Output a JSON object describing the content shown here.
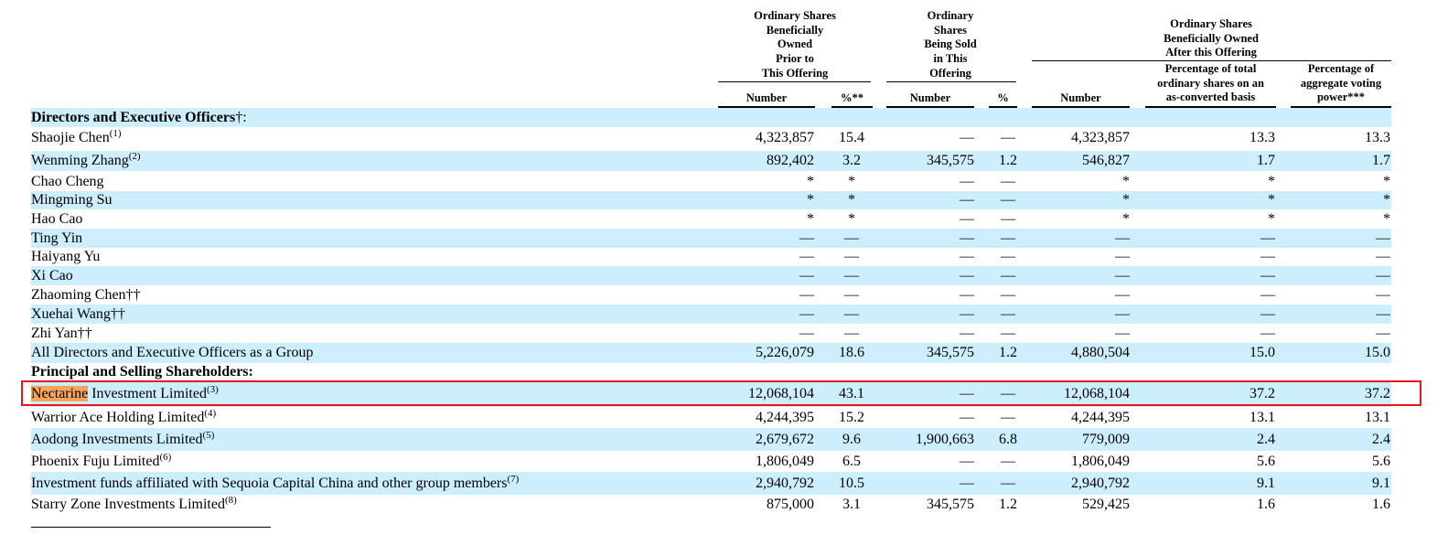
{
  "header": {
    "group_prior": "Ordinary Shares\nBeneficially\nOwned\nPrior to\nThis Offering",
    "group_sold": "Ordinary\nShares\nBeing Sold\nin This\nOffering",
    "group_after": "Ordinary Shares\nBeneficially Owned\nAfter this Offering",
    "col_number": "Number",
    "col_pct_prior": "%**",
    "col_number_sold": "Number",
    "col_pct_sold": "%",
    "col_number_after": "Number",
    "col_pct_total": "Percentage of total\nordinary shares on an\nas-converted basis",
    "col_pct_voting": "Percentage of\naggregate voting\npower***"
  },
  "rows": [
    {
      "type": "section",
      "name": "Directors and Executive Officers",
      "mark": "†",
      ":": "",
      "suffix": ":",
      "shade": true
    },
    {
      "name": "Shaojie Chen",
      "sup": "(1)",
      "n1": "4,323,857",
      "p1": "15.4",
      "n2": "—",
      "p2": "—",
      "n3": "4,323,857",
      "p3": "13.3",
      "p4": "13.3",
      "shade": false
    },
    {
      "name": "Wenming Zhang",
      "sup": "(2)",
      "n1": "892,402",
      "p1": "3.2",
      "n2": "345,575",
      "p2": "1.2",
      "n3": "546,827",
      "p3": "1.7",
      "p4": "1.7",
      "shade": true
    },
    {
      "name": "Chao Cheng",
      "sup": "",
      "n1": "*",
      "p1": "*",
      "n2": "—",
      "p2": "—",
      "n3": "*",
      "p3": "*",
      "p4": "*",
      "shade": false
    },
    {
      "name": "Mingming Su",
      "sup": "",
      "n1": "*",
      "p1": "*",
      "n2": "—",
      "p2": "—",
      "n3": "*",
      "p3": "*",
      "p4": "*",
      "shade": true
    },
    {
      "name": "Hao Cao",
      "sup": "",
      "n1": "*",
      "p1": "*",
      "n2": "—",
      "p2": "—",
      "n3": "*",
      "p3": "*",
      "p4": "*",
      "shade": false
    },
    {
      "name": "Ting Yin",
      "sup": "",
      "n1": "—",
      "p1": "—",
      "n2": "—",
      "p2": "—",
      "n3": "—",
      "p3": "—",
      "p4": "—",
      "shade": true
    },
    {
      "name": "Haiyang Yu",
      "sup": "",
      "n1": "—",
      "p1": "—",
      "n2": "—",
      "p2": "—",
      "n3": "—",
      "p3": "—",
      "p4": "—",
      "shade": false
    },
    {
      "name": "Xi Cao",
      "sup": "",
      "n1": "—",
      "p1": "—",
      "n2": "—",
      "p2": "—",
      "n3": "—",
      "p3": "—",
      "p4": "—",
      "shade": true
    },
    {
      "name": "Zhaoming Chen††",
      "sup": "",
      "n1": "—",
      "p1": "—",
      "n2": "—",
      "p2": "—",
      "n3": "—",
      "p3": "—",
      "p4": "—",
      "shade": false
    },
    {
      "name": "Xuehai Wang††",
      "sup": "",
      "n1": "—",
      "p1": "—",
      "n2": "—",
      "p2": "—",
      "n3": "—",
      "p3": "—",
      "p4": "—",
      "shade": true
    },
    {
      "name": "Zhi Yan††",
      "sup": "",
      "n1": "—",
      "p1": "—",
      "n2": "—",
      "p2": "—",
      "n3": "—",
      "p3": "—",
      "p4": "—",
      "shade": false
    },
    {
      "name": "All Directors and Executive Officers as a Group",
      "sup": "",
      "n1": "5,226,079",
      "p1": "18.6",
      "n2": "345,575",
      "p2": "1.2",
      "n3": "4,880,504",
      "p3": "15.0",
      "p4": "15.0",
      "shade": true
    },
    {
      "type": "section",
      "name": "Principal and Selling Shareholders:",
      "shade": false
    },
    {
      "name": "Nectarine",
      "name_rest": " Investment Limited",
      "sup": "(3)",
      "n1": "12,068,104",
      "p1": "43.1",
      "n2": "—",
      "p2": "—",
      "n3": "12,068,104",
      "p3": "37.2",
      "p4": "37.2",
      "shade": true,
      "highlight": true
    },
    {
      "name": "Warrior Ace Holding Limited",
      "sup": "(4)",
      "n1": "4,244,395",
      "p1": "15.2",
      "n2": "—",
      "p2": "—",
      "n3": "4,244,395",
      "p3": "13.1",
      "p4": "13.1",
      "shade": false
    },
    {
      "name": "Aodong Investments Limited",
      "sup": "(5)",
      "n1": "2,679,672",
      "p1": "9.6",
      "n2": "1,900,663",
      "p2": "6.8",
      "n3": "779,009",
      "p3": "2.4",
      "p4": "2.4",
      "shade": true
    },
    {
      "name": "Phoenix Fuju Limited",
      "sup": "(6)",
      "n1": "1,806,049",
      "p1": "6.5",
      "n2": "—",
      "p2": "—",
      "n3": "1,806,049",
      "p3": "5.6",
      "p4": "5.6",
      "shade": false
    },
    {
      "name": "Investment funds affiliated with Sequoia Capital China and other group members",
      "sup": "(7)",
      "n1": "2,940,792",
      "p1": "10.5",
      "n2": "—",
      "p2": "—",
      "n3": "2,940,792",
      "p3": "9.1",
      "p4": "9.1",
      "shade": true
    },
    {
      "name": "Starry Zone Investments Limited",
      "sup": "(8)",
      "n1": "875,000",
      "p1": "3.1",
      "n2": "345,575",
      "p2": "1.2",
      "n3": "529,425",
      "p3": "1.6",
      "p4": "1.6",
      "shade": false
    }
  ],
  "colors": {
    "row_shade": "#cdeefd",
    "highlight_fill": "#f5a55b",
    "highlight_box": "#e8151c"
  }
}
